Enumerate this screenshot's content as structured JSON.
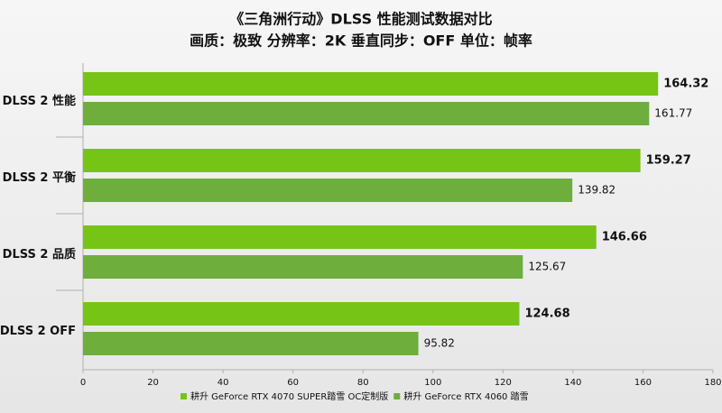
{
  "chart_data": {
    "type": "hbar",
    "title": "《三角洲行动》DLSS 性能测试数据对比",
    "subtitle": "画质：极致 分辨率：2K 垂直同步：OFF 单位：帧率",
    "categories": [
      "DLSS 2 性能",
      "DLSS 2 平衡",
      "DLSS 2 品质",
      "DLSS 2 OFF"
    ],
    "series": [
      {
        "name": "耕升 GeForce RTX 4070 SUPER踏雪 OC定制版",
        "color": "#76c416",
        "values": [
          164.32,
          159.27,
          146.66,
          124.68
        ]
      },
      {
        "name": "耕升 GeForce RTX 4060 踏雪",
        "color": "#6dae3c",
        "values": [
          161.77,
          139.82,
          125.67,
          95.82
        ]
      }
    ],
    "xlim": [
      0,
      180
    ],
    "xticks": [
      0,
      20,
      40,
      60,
      80,
      100,
      120,
      140,
      160,
      180
    ],
    "grid": false,
    "legend": "bottom"
  }
}
